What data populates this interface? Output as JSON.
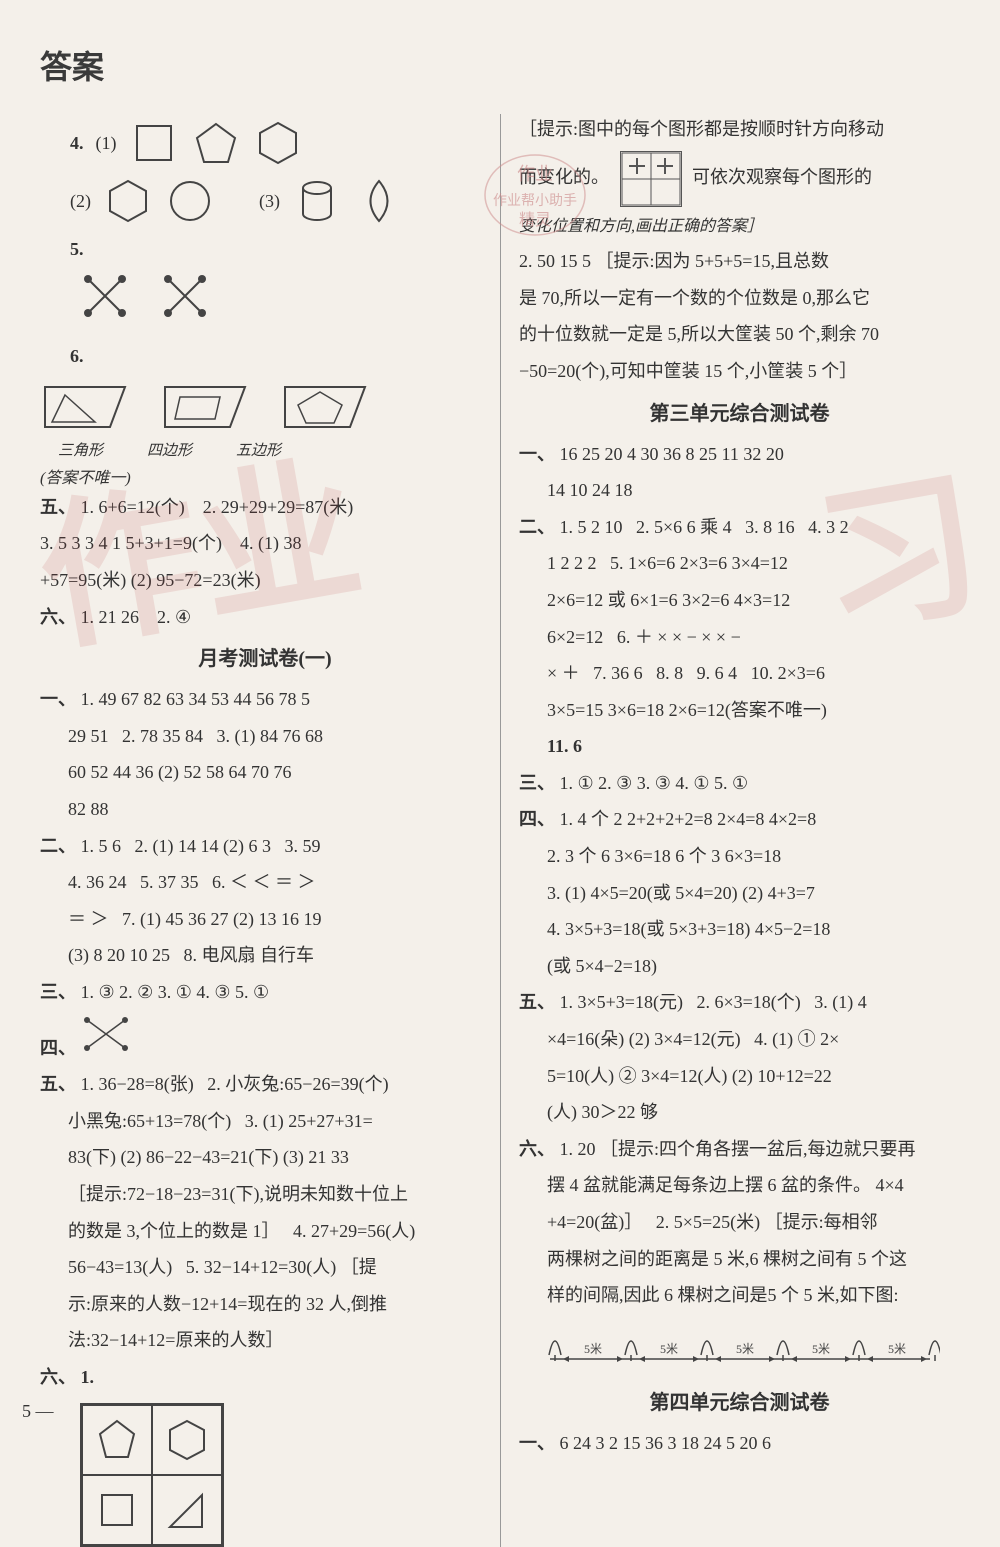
{
  "title": "答案",
  "page_number": "5 —",
  "left": {
    "q4_label": "4.",
    "q4_1": "(1)",
    "q4_2": "(2)",
    "q4_3": "(3)",
    "q5_label": "5.",
    "q6_label": "6.",
    "banner_labels": [
      "三角形",
      "四边形",
      "五边形"
    ],
    "banner_note": "(答案不唯一)",
    "sec5_label": "五、",
    "sec5_1": "1. 6+6=12(个)",
    "sec5_2": "2. 29+29+29=87(米)",
    "sec5_3": "3. 5  3  3  4  1  5+3+1=9(个)",
    "sec5_4": "4. (1) 38",
    "sec5_4b": "+57=95(米)  (2) 95−72=23(米)",
    "sec6_label": "六、",
    "sec6_1": "1. 21  26",
    "sec6_2": "2. ④",
    "test1_title": "月考测试卷(一)",
    "t1_s1_label": "一、",
    "t1_s1_1": "1. 49  67  82  63  34  53  44  56  78  5",
    "t1_s1_1b": "29  51",
    "t1_s1_2": "2. 78  35  84",
    "t1_s1_3": "3. (1) 84  76  68",
    "t1_s1_3b": "60  52  44  36  (2) 52  58  64  70  76",
    "t1_s1_3c": "82  88",
    "t1_s2_label": "二、",
    "t1_s2_1": "1. 5  6",
    "t1_s2_2": "2. (1) 14  14  (2) 6  3",
    "t1_s2_3": "3. 59",
    "t1_s2_4": "4. 36  24",
    "t1_s2_5": "5. 37  35",
    "t1_s2_6": "6. ＜  ＜  ＝  ＞",
    "t1_s2_6b": "＝  ＞",
    "t1_s2_7": "7. (1) 45  36  27  (2) 13  16  19",
    "t1_s2_7b": "(3) 8  20  10  25",
    "t1_s2_8": "8. 电风扇  自行车",
    "t1_s3_label": "三、",
    "t1_s3": "1. ③  2. ②  3. ①  4. ③  5. ①",
    "t1_s4_label": "四、",
    "t1_s5_label": "五、",
    "t1_s5_1": "1. 36−28=8(张)",
    "t1_s5_2": "2. 小灰兔:65−26=39(个)",
    "t1_s5_2b": "小黑兔:65+13=78(个)",
    "t1_s5_3": "3. (1) 25+27+31=",
    "t1_s5_3b": "83(下)  (2) 86−22−43=21(下)  (3) 21  33",
    "t1_s5_3c": "［提示:72−18−23=31(下),说明未知数十位上",
    "t1_s5_3d": "的数是 3,个位上的数是 1］",
    "t1_s5_4": "4. 27+29=56(人)",
    "t1_s5_4b": "56−43=13(人)",
    "t1_s5_5": "5. 32−14+12=30(人)  ［提",
    "t1_s5_5b": "示:原来的人数−12+14=现在的 32 人,倒推",
    "t1_s5_5c": "法:32−14+12=原来的人数］",
    "t1_s6_label": "六、",
    "t1_s6_1": "1."
  },
  "right": {
    "hint1a": "［提示:图中的每个图形都是按顺时针方向移动",
    "hint1b": "而变化的。",
    "hint1c": "可依次观察每个图形的",
    "hint1d": "变化位置和方向,画出正确的答案］",
    "r_q2": "2. 50  15  5  ［提示:因为 5+5+5=15,且总数",
    "r_q2b": "是 70,所以一定有一个数的个位数是 0,那么它",
    "r_q2c": "的十位数就一定是 5,所以大筐装 50 个,剩余 70",
    "r_q2d": "−50=20(个),可知中筐装 15 个,小筐装 5 个］",
    "test3_title": "第三单元综合测试卷",
    "t3_s1_label": "一、",
    "t3_s1": "16  25  20  4  30  36  8  25  11  32  20",
    "t3_s1b": "14  10  24  18",
    "t3_s2_label": "二、",
    "t3_s2_1": "1. 5  2  10",
    "t3_s2_2": "2. 5×6  6 乘 4",
    "t3_s2_3": "3. 8  16",
    "t3_s2_4": "4. 3  2",
    "t3_s2_4b": "1  2  2  2",
    "t3_s2_5": "5. 1×6=6  2×3=6  3×4=12",
    "t3_s2_5b": "2×6=12 或 6×1=6  3×2=6  4×3=12",
    "t3_s2_5c": "6×2=12",
    "t3_s2_6": "6. ＋  ×  ×  −  ×  ×  −",
    "t3_s2_6b": "×  ＋",
    "t3_s2_7": "7. 36  6",
    "t3_s2_8": "8. 8",
    "t3_s2_9": "9. 6  4",
    "t3_s2_10": "10. 2×3=6",
    "t3_s2_10b": "3×5=15  3×6=18  2×6=12(答案不唯一)",
    "t3_s2_11": "11. 6",
    "t3_s3_label": "三、",
    "t3_s3": "1. ①  2. ③  3. ③  4. ①  5. ①",
    "t3_s4_label": "四、",
    "t3_s4_1": "1. 4 个 2  2+2+2+2=8  2×4=8  4×2=8",
    "t3_s4_2": "2. 3 个 6  3×6=18  6 个 3  6×3=18",
    "t3_s4_3": "3. (1) 4×5=20(或 5×4=20)  (2) 4+3=7",
    "t3_s4_4": "4. 3×5+3=18(或 5×3+3=18)  4×5−2=18",
    "t3_s4_4b": "(或 5×4−2=18)",
    "t3_s5_label": "五、",
    "t3_s5_1": "1. 3×5+3=18(元)",
    "t3_s5_2": "2. 6×3=18(个)",
    "t3_s5_3": "3. (1) 4",
    "t3_s5_3b": "×4=16(朵)  (2) 3×4=12(元)",
    "t3_s5_4": "4. (1) ① 2×",
    "t3_s5_4b": "5=10(人)  ② 3×4=12(人)  (2) 10+12=22",
    "t3_s5_4c": "(人)  30＞22  够",
    "t3_s6_label": "六、",
    "t3_s6_1": "1. 20  ［提示:四个角各摆一盆后,每边就只要再",
    "t3_s6_1b": "摆 4 盆就能满足每条边上摆 6 盆的条件。 4×4",
    "t3_s6_1c": "+4=20(盆)］",
    "t3_s6_2": "2. 5×5=25(米)  ［提示:每相邻",
    "t3_s6_2b": "两棵树之间的距离是 5 米,6 棵树之间有 5 个这",
    "t3_s6_2c": "样的间隔,因此 6 棵树之间是5 个 5 米,如下图:",
    "tree_labels": [
      "5米",
      "5米",
      "5米",
      "5米",
      "5米"
    ],
    "test4_title": "第四单元综合测试卷",
    "t4_s1_label": "一、",
    "t4_s1": "6  24  3  2  15  36  3  18  24  5  20  6"
  },
  "styles": {
    "page_bg": "#f4f0ea",
    "text_color": "#333333",
    "watermark_color": "rgba(180,60,60,0.12)",
    "shape_stroke": "#444444",
    "base_fontsize": 18,
    "title_fontsize": 32
  }
}
